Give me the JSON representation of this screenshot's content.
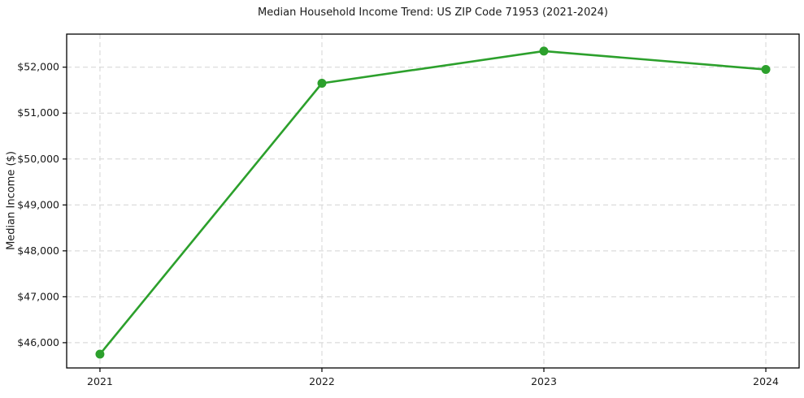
{
  "chart_data": {
    "type": "line",
    "title": "Median Household Income Trend: US ZIP Code 71953 (2021-2024)",
    "xlabel": "",
    "ylabel": "Median Income ($)",
    "categories": [
      "2021",
      "2022",
      "2023",
      "2024"
    ],
    "x": [
      2021,
      2022,
      2023,
      2024
    ],
    "series": [
      {
        "name": "Median Household Income",
        "values": [
          45750,
          51650,
          52350,
          51950
        ]
      }
    ],
    "y_ticks": {
      "values": [
        46000,
        47000,
        48000,
        49000,
        50000,
        51000,
        52000
      ],
      "labels": [
        "$46,000",
        "$47,000",
        "$48,000",
        "$49,000",
        "$50,000",
        "$51,000",
        "$52,000"
      ]
    },
    "xlim": [
      2020.85,
      2024.15
    ],
    "ylim": [
      45450,
      52720
    ],
    "grid": "dashed-both-axes",
    "legend": "none",
    "marker": "circle",
    "colors": {
      "line": "#2ca02c",
      "marker": "#2ca02c",
      "grid": "#d4d4d4",
      "spine": "#000000",
      "text": "#1a1a1a",
      "background": "#ffffff"
    }
  }
}
